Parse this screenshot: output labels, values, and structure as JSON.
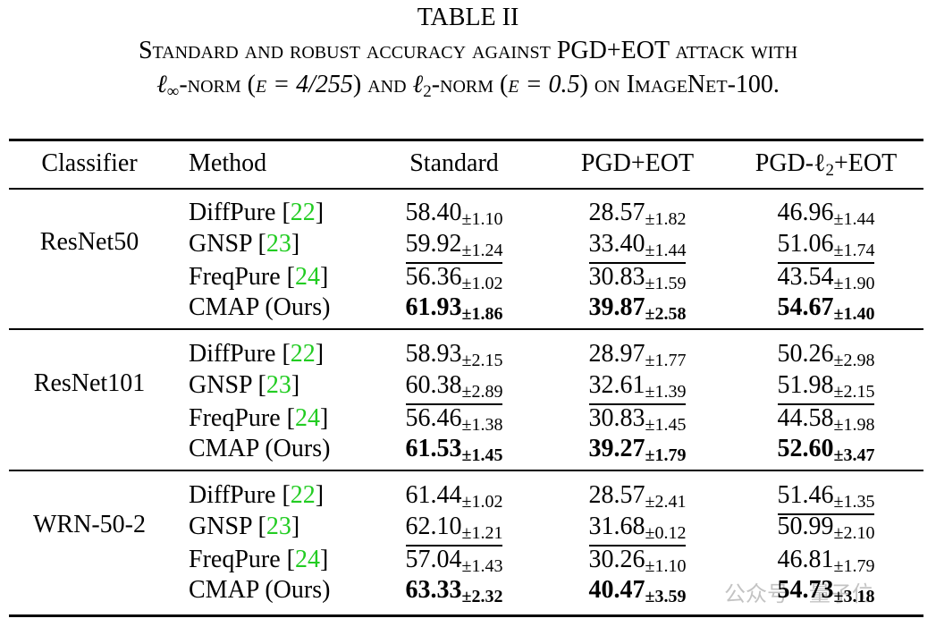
{
  "title": "TABLE II",
  "caption": {
    "line1": "Standard and robust accuracy against PGD+EOT attack with",
    "line2": [
      "ℓ",
      "∞",
      "-norm (",
      "ϵ = 4/255",
      ") and ",
      "ℓ",
      "2",
      "-norm (",
      "ϵ = 0.5",
      ") on ImageNet-100."
    ]
  },
  "table": {
    "header": [
      "Classifier",
      "Method",
      "Standard",
      "PGD+EOT",
      [
        "PGD-ℓ",
        "2",
        "+EOT"
      ]
    ],
    "groups": [
      {
        "classifier": "ResNet50",
        "rows": [
          {
            "method": [
              "DiffPure [",
              "22",
              "]"
            ],
            "cells": [
              {
                "value": "58.40",
                "std": "±1.10"
              },
              {
                "value": "28.57",
                "std": "±1.82"
              },
              {
                "value": "46.96",
                "std": "±1.44"
              }
            ]
          },
          {
            "method": [
              "GNSP [",
              "23",
              "]"
            ],
            "cells": [
              {
                "value": "59.92",
                "std": "±1.24",
                "underline": true
              },
              {
                "value": "33.40",
                "std": "±1.44",
                "underline": true
              },
              {
                "value": "51.06",
                "std": "±1.74",
                "underline": true
              }
            ]
          },
          {
            "method": [
              "FreqPure [",
              "24",
              "]"
            ],
            "cells": [
              {
                "value": "56.36",
                "std": "±1.02"
              },
              {
                "value": "30.83",
                "std": "±1.59"
              },
              {
                "value": "43.54",
                "std": "±1.90"
              }
            ]
          },
          {
            "method": [
              "CMAP (Ours)"
            ],
            "cells": [
              {
                "value": "61.93",
                "std": "±1.86",
                "bold": true
              },
              {
                "value": "39.87",
                "std": "±2.58",
                "bold": true
              },
              {
                "value": "54.67",
                "std": "±1.40",
                "bold": true
              }
            ]
          }
        ]
      },
      {
        "classifier": "ResNet101",
        "rows": [
          {
            "method": [
              "DiffPure [",
              "22",
              "]"
            ],
            "cells": [
              {
                "value": "58.93",
                "std": "±2.15"
              },
              {
                "value": "28.97",
                "std": "±1.77"
              },
              {
                "value": "50.26",
                "std": "±2.98"
              }
            ]
          },
          {
            "method": [
              "GNSP [",
              "23",
              "]"
            ],
            "cells": [
              {
                "value": "60.38",
                "std": "±2.89",
                "underline": true
              },
              {
                "value": "32.61",
                "std": "±1.39",
                "underline": true
              },
              {
                "value": "51.98",
                "std": "±2.15",
                "underline": true
              }
            ]
          },
          {
            "method": [
              "FreqPure [",
              "24",
              "]"
            ],
            "cells": [
              {
                "value": "56.46",
                "std": "±1.38"
              },
              {
                "value": "30.83",
                "std": "±1.45"
              },
              {
                "value": "44.58",
                "std": "±1.98"
              }
            ]
          },
          {
            "method": [
              "CMAP (Ours)"
            ],
            "cells": [
              {
                "value": "61.53",
                "std": "±1.45",
                "bold": true
              },
              {
                "value": "39.27",
                "std": "±1.79",
                "bold": true
              },
              {
                "value": "52.60",
                "std": "±3.47",
                "bold": true
              }
            ]
          }
        ]
      },
      {
        "classifier": "WRN-50-2",
        "rows": [
          {
            "method": [
              "DiffPure [",
              "22",
              "]"
            ],
            "cells": [
              {
                "value": "61.44",
                "std": "±1.02"
              },
              {
                "value": "28.57",
                "std": "±2.41"
              },
              {
                "value": "51.46",
                "std": "±1.35",
                "underline": true
              }
            ]
          },
          {
            "method": [
              "GNSP [",
              "23",
              "]"
            ],
            "cells": [
              {
                "value": "62.10",
                "std": "±1.21",
                "underline": true
              },
              {
                "value": "31.68",
                "std": "±0.12",
                "underline": true
              },
              {
                "value": "50.99",
                "std": "±2.10"
              }
            ]
          },
          {
            "method": [
              "FreqPure [",
              "24",
              "]"
            ],
            "cells": [
              {
                "value": "57.04",
                "std": "±1.43"
              },
              {
                "value": "30.26",
                "std": "±1.10"
              },
              {
                "value": "46.81",
                "std": "±1.79"
              }
            ]
          },
          {
            "method": [
              "CMAP (Ours)"
            ],
            "cells": [
              {
                "value": "63.33",
                "std": "±2.32",
                "bold": true
              },
              {
                "value": "40.47",
                "std": "±3.59",
                "bold": true
              },
              {
                "value": "54.73",
                "std": "±3.18",
                "bold": true
              }
            ]
          }
        ]
      }
    ]
  },
  "watermark": "公众号 · 量子位"
}
